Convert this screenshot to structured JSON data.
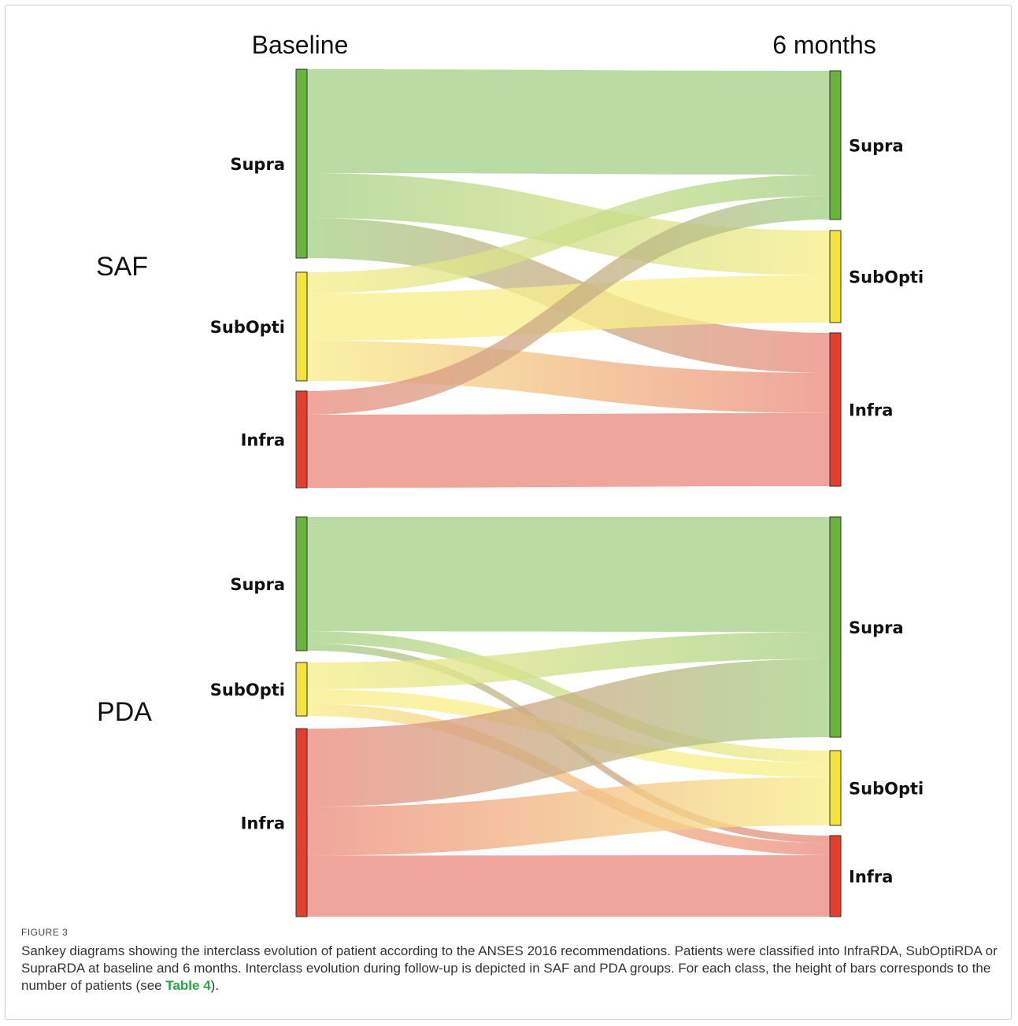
{
  "diagram": {
    "column_left": "Baseline",
    "column_right": "6 months",
    "colors": {
      "Supra": "#6ab33c",
      "SubOpti": "#f4e23e",
      "Infra": "#e0402c"
    },
    "groups": [
      {
        "label": "SAF",
        "left_nodes": [
          {
            "key": "Supra",
            "label": "Supra",
            "value": 80
          },
          {
            "key": "SubOpti",
            "label": "SubOpti",
            "value": 46
          },
          {
            "key": "Infra",
            "label": "Infra",
            "value": 41
          }
        ],
        "right_nodes": [
          {
            "key": "Supra",
            "label": "Supra",
            "value": 63
          },
          {
            "key": "SubOpti",
            "label": "SubOpti",
            "value": 39
          },
          {
            "key": "Infra",
            "label": "Infra",
            "value": 65
          }
        ],
        "flows": [
          {
            "from": "Supra",
            "to": "Supra",
            "value": 44
          },
          {
            "from": "Supra",
            "to": "SubOpti",
            "value": 19
          },
          {
            "from": "Supra",
            "to": "Infra",
            "value": 17
          },
          {
            "from": "SubOpti",
            "to": "Supra",
            "value": 9
          },
          {
            "from": "SubOpti",
            "to": "SubOpti",
            "value": 20
          },
          {
            "from": "SubOpti",
            "to": "Infra",
            "value": 17
          },
          {
            "from": "Infra",
            "to": "Supra",
            "value": 10
          },
          {
            "from": "Infra",
            "to": "Infra",
            "value": 31
          }
        ]
      },
      {
        "label": "PDA",
        "left_nodes": [
          {
            "key": "Supra",
            "label": "Supra",
            "value": 55
          },
          {
            "key": "SubOpti",
            "label": "SubOpti",
            "value": 22
          },
          {
            "key": "Infra",
            "label": "Infra",
            "value": 77
          }
        ],
        "right_nodes": [
          {
            "key": "Supra",
            "label": "Supra",
            "value": 90
          },
          {
            "key": "SubOpti",
            "label": "SubOpti",
            "value": 31
          },
          {
            "key": "Infra",
            "label": "Infra",
            "value": 33
          }
        ],
        "flows": [
          {
            "from": "Supra",
            "to": "Supra",
            "value": 47
          },
          {
            "from": "Supra",
            "to": "SubOpti",
            "value": 5
          },
          {
            "from": "Supra",
            "to": "Infra",
            "value": 3
          },
          {
            "from": "SubOpti",
            "to": "Supra",
            "value": 11
          },
          {
            "from": "SubOpti",
            "to": "SubOpti",
            "value": 6
          },
          {
            "from": "SubOpti",
            "to": "Infra",
            "value": 5
          },
          {
            "from": "Infra",
            "to": "Supra",
            "value": 32
          },
          {
            "from": "Infra",
            "to": "SubOpti",
            "value": 20
          },
          {
            "from": "Infra",
            "to": "Infra",
            "value": 25
          }
        ]
      }
    ]
  },
  "caption": {
    "title": "FIGURE 3",
    "text": "Sankey diagrams showing the interclass evolution of patient according to the ANSES 2016 recommendations. Patients were classified into InfraRDA, SubOptiRDA or SupraRDA at baseline and 6 months. Interclass evolution during follow-up is depicted in SAF and PDA groups. For each class, the height of bars corresponds to the number of patients (see ",
    "link": "Table 4",
    "text_end": ")."
  }
}
